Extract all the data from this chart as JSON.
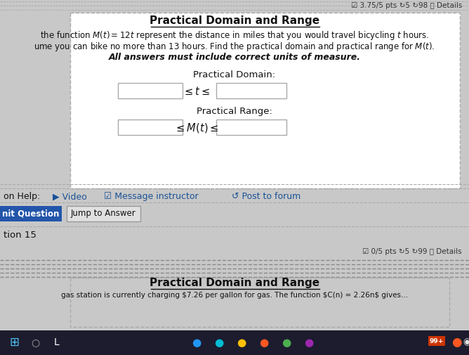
{
  "title": "Practical Domain and Range",
  "score_text": "☑ 3.75/5 pts ↻5 ↻98 ⓘ Details",
  "score_text2": "☑ 0/5 pts ↻5 ↻99 ⓘ Details",
  "title2": "Practical Domain and Range",
  "bg_color": "#c8c8c8",
  "white_color": "#ffffff",
  "blue_color": "#1a5296",
  "button_blue": "#2255aa",
  "text_color": "#111111",
  "dashed_color": "#aaaaaa",
  "taskbar_color": "#1c1c2e"
}
